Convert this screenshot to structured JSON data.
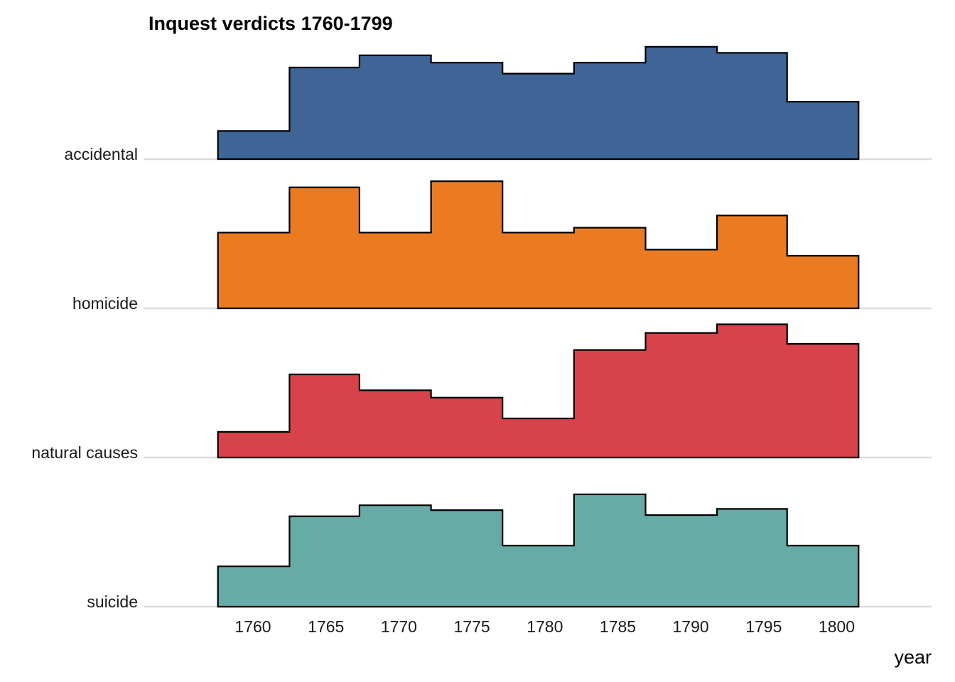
{
  "chart_data": {
    "type": "area",
    "subtype": "ridgeline-histogram",
    "title": "Inquest verdicts 1760-1799",
    "xlabel": "year",
    "ylabel": "",
    "xlim": [
      1752.5,
      1806.5
    ],
    "x_ticks": [
      1760,
      1765,
      1770,
      1775,
      1780,
      1785,
      1790,
      1795,
      1800
    ],
    "bin_edges": [
      1757.6,
      1762.5,
      1767.3,
      1772.2,
      1777.1,
      1782.0,
      1786.9,
      1791.8,
      1796.6,
      1801.5
    ],
    "value_unit": "relative density (fraction of panel height)",
    "grid": false,
    "legend": "none",
    "series": [
      {
        "name": "accidental",
        "color": "#3f6496",
        "values": [
          0.23,
          0.75,
          0.85,
          0.79,
          0.7,
          0.79,
          0.92,
          0.87,
          0.47
        ]
      },
      {
        "name": "homicide",
        "color": "#eb7b22",
        "values": [
          0.62,
          0.99,
          0.62,
          1.04,
          0.62,
          0.66,
          0.48,
          0.76,
          0.43
        ]
      },
      {
        "name": "natural causes",
        "color": "#d8424a",
        "values": [
          0.21,
          0.68,
          0.55,
          0.49,
          0.32,
          0.88,
          1.02,
          1.09,
          0.93
        ]
      },
      {
        "name": "suicide",
        "color": "#66aba5",
        "values": [
          0.33,
          0.74,
          0.83,
          0.79,
          0.5,
          0.92,
          0.75,
          0.8,
          0.5
        ]
      }
    ]
  }
}
